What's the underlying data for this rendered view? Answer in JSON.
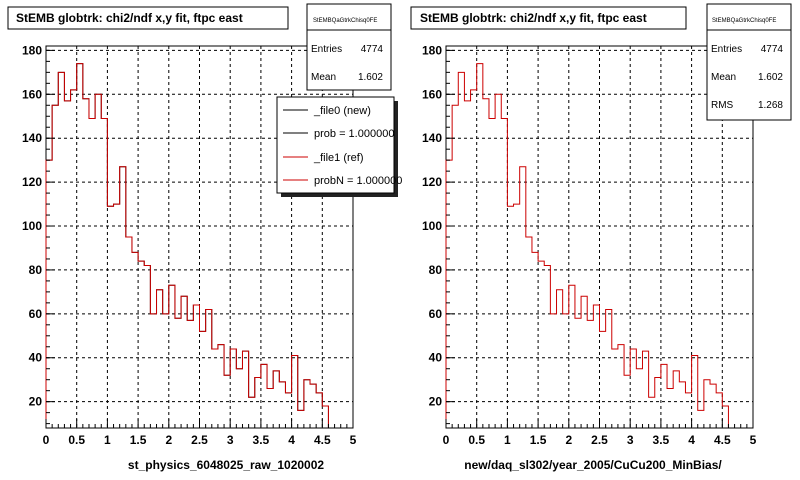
{
  "chart_data": [
    {
      "type": "histogram",
      "title": "StEMB globtrk: chi2/ndf x,y fit, ftpc east",
      "xlabel": "st_physics_6048025_raw_1020002",
      "xlim": [
        0,
        5
      ],
      "ylim": [
        8,
        182
      ],
      "xticks": [
        "0",
        "0.5",
        "1",
        "1.5",
        "2",
        "2.5",
        "3",
        "3.5",
        "4",
        "4.5",
        "5"
      ],
      "yticks": [
        "20",
        "40",
        "60",
        "80",
        "100",
        "120",
        "140",
        "160",
        "180"
      ],
      "grid": true,
      "bin_width": 0.1,
      "series": [
        {
          "name": "_file0 (new)",
          "color": "#000000",
          "values": [
            130,
            155,
            170,
            157,
            162,
            174,
            158,
            149,
            160,
            149,
            109,
            110,
            127,
            95,
            88,
            84,
            82,
            60,
            71,
            60,
            73,
            58,
            68,
            57,
            64,
            52,
            62,
            44,
            46,
            32,
            44,
            35,
            43,
            22,
            31,
            37,
            26,
            34,
            29,
            24,
            41,
            16,
            30,
            28,
            24,
            18
          ]
        },
        {
          "name": "_file1 (ref)",
          "color": "#cc0000",
          "values": [
            130,
            155,
            170,
            157,
            162,
            174,
            158,
            149,
            160,
            149,
            109,
            110,
            127,
            95,
            88,
            84,
            82,
            60,
            71,
            60,
            73,
            58,
            68,
            57,
            64,
            52,
            62,
            44,
            46,
            32,
            44,
            35,
            43,
            22,
            31,
            37,
            26,
            34,
            29,
            24,
            41,
            16,
            30,
            28,
            24,
            18
          ]
        }
      ],
      "stats": {
        "name": "StEMBQaGtrkChisq0FE",
        "rows": [
          {
            "label": "Entries",
            "value": "4774"
          },
          {
            "label": "Mean",
            "value": "1.602"
          }
        ]
      },
      "legend": {
        "placement": "top-right",
        "entries": [
          {
            "text": "_file0 (new)",
            "color": "#000000"
          },
          {
            "text": "prob = 1.000000",
            "color": "#000000"
          },
          {
            "text": "_file1 (ref)",
            "color": "#cc0000"
          },
          {
            "text": "probN = 1.000000",
            "color": "#cc0000"
          }
        ]
      }
    },
    {
      "type": "histogram",
      "title": "StEMB globtrk: chi2/ndf x,y fit, ftpc east",
      "xlabel": "new/daq_sl302/year_2005/CuCu200_MinBias/",
      "xlim": [
        0,
        5
      ],
      "ylim": [
        8,
        182
      ],
      "xticks": [
        "0",
        "0.5",
        "1",
        "1.5",
        "2",
        "2.5",
        "3",
        "3.5",
        "4",
        "4.5",
        "5"
      ],
      "yticks": [
        "20",
        "40",
        "60",
        "80",
        "100",
        "120",
        "140",
        "160",
        "180"
      ],
      "grid": true,
      "bin_width": 0.1,
      "series": [
        {
          "name": "",
          "color": "#cc0000",
          "values": [
            130,
            155,
            170,
            157,
            162,
            174,
            158,
            149,
            160,
            149,
            109,
            110,
            127,
            95,
            88,
            84,
            82,
            60,
            71,
            60,
            73,
            58,
            68,
            57,
            64,
            52,
            62,
            44,
            46,
            32,
            44,
            35,
            43,
            22,
            31,
            37,
            26,
            34,
            29,
            24,
            41,
            16,
            30,
            28,
            24,
            18
          ]
        }
      ],
      "stats": {
        "name": "StEMBQaGtrkChisq0FE",
        "rows": [
          {
            "label": "Entries",
            "value": "4774"
          },
          {
            "label": "Mean",
            "value": "1.602"
          },
          {
            "label": "RMS",
            "value": "1.268"
          }
        ]
      }
    }
  ]
}
